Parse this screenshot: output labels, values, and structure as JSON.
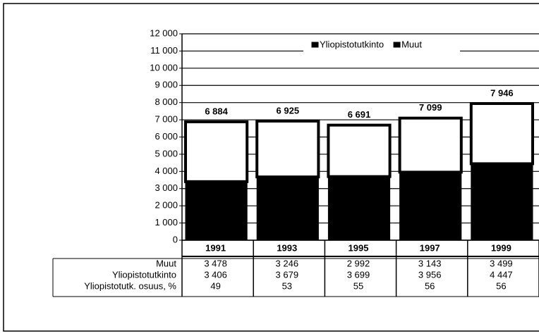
{
  "chart_data": {
    "type": "stacked_bar",
    "categories": [
      "1991",
      "1993",
      "1995",
      "1997",
      "1999"
    ],
    "series": [
      {
        "name": "Yliopistotutkinto",
        "color": "#000000",
        "values": [
          3406,
          3679,
          3699,
          3956,
          4447
        ],
        "value_labels": [
          "3 406",
          "3 679",
          "3 699",
          "3 956",
          "4 447"
        ]
      },
      {
        "name": "Muut",
        "color": "#ffffff",
        "values": [
          3478,
          3246,
          2992,
          3143,
          3499
        ],
        "value_labels": [
          "3 478",
          "3 246",
          "2 992",
          "3 143",
          "3 499"
        ]
      }
    ],
    "total_labels": [
      "6 884",
      "6 925",
      "6 691",
      "7 099",
      "7 946"
    ],
    "share_row": {
      "name": "Yliopistotutk. osuus, %",
      "values": [
        49,
        53,
        55,
        56,
        56
      ]
    },
    "ylim": [
      0,
      12000
    ],
    "yticks": [
      0,
      {
        "value": 1000,
        "label": "1 000"
      },
      {
        "value": 2000,
        "label": "2 000"
      },
      {
        "value": 3000,
        "label": "3 000"
      },
      {
        "value": 4000,
        "label": "4 000"
      },
      {
        "value": 5000,
        "label": "5 000"
      },
      {
        "value": 6000,
        "label": "6 000"
      },
      {
        "value": 7000,
        "label": "7 000"
      },
      {
        "value": 8000,
        "label": "8 000"
      },
      {
        "value": 9000,
        "label": "9 000"
      },
      {
        "value": 10000,
        "label": "10 000"
      },
      {
        "value": 11000,
        "label": "11 000"
      },
      {
        "value": 12000,
        "label": "12 000"
      }
    ],
    "grid": true,
    "legend": "top"
  }
}
